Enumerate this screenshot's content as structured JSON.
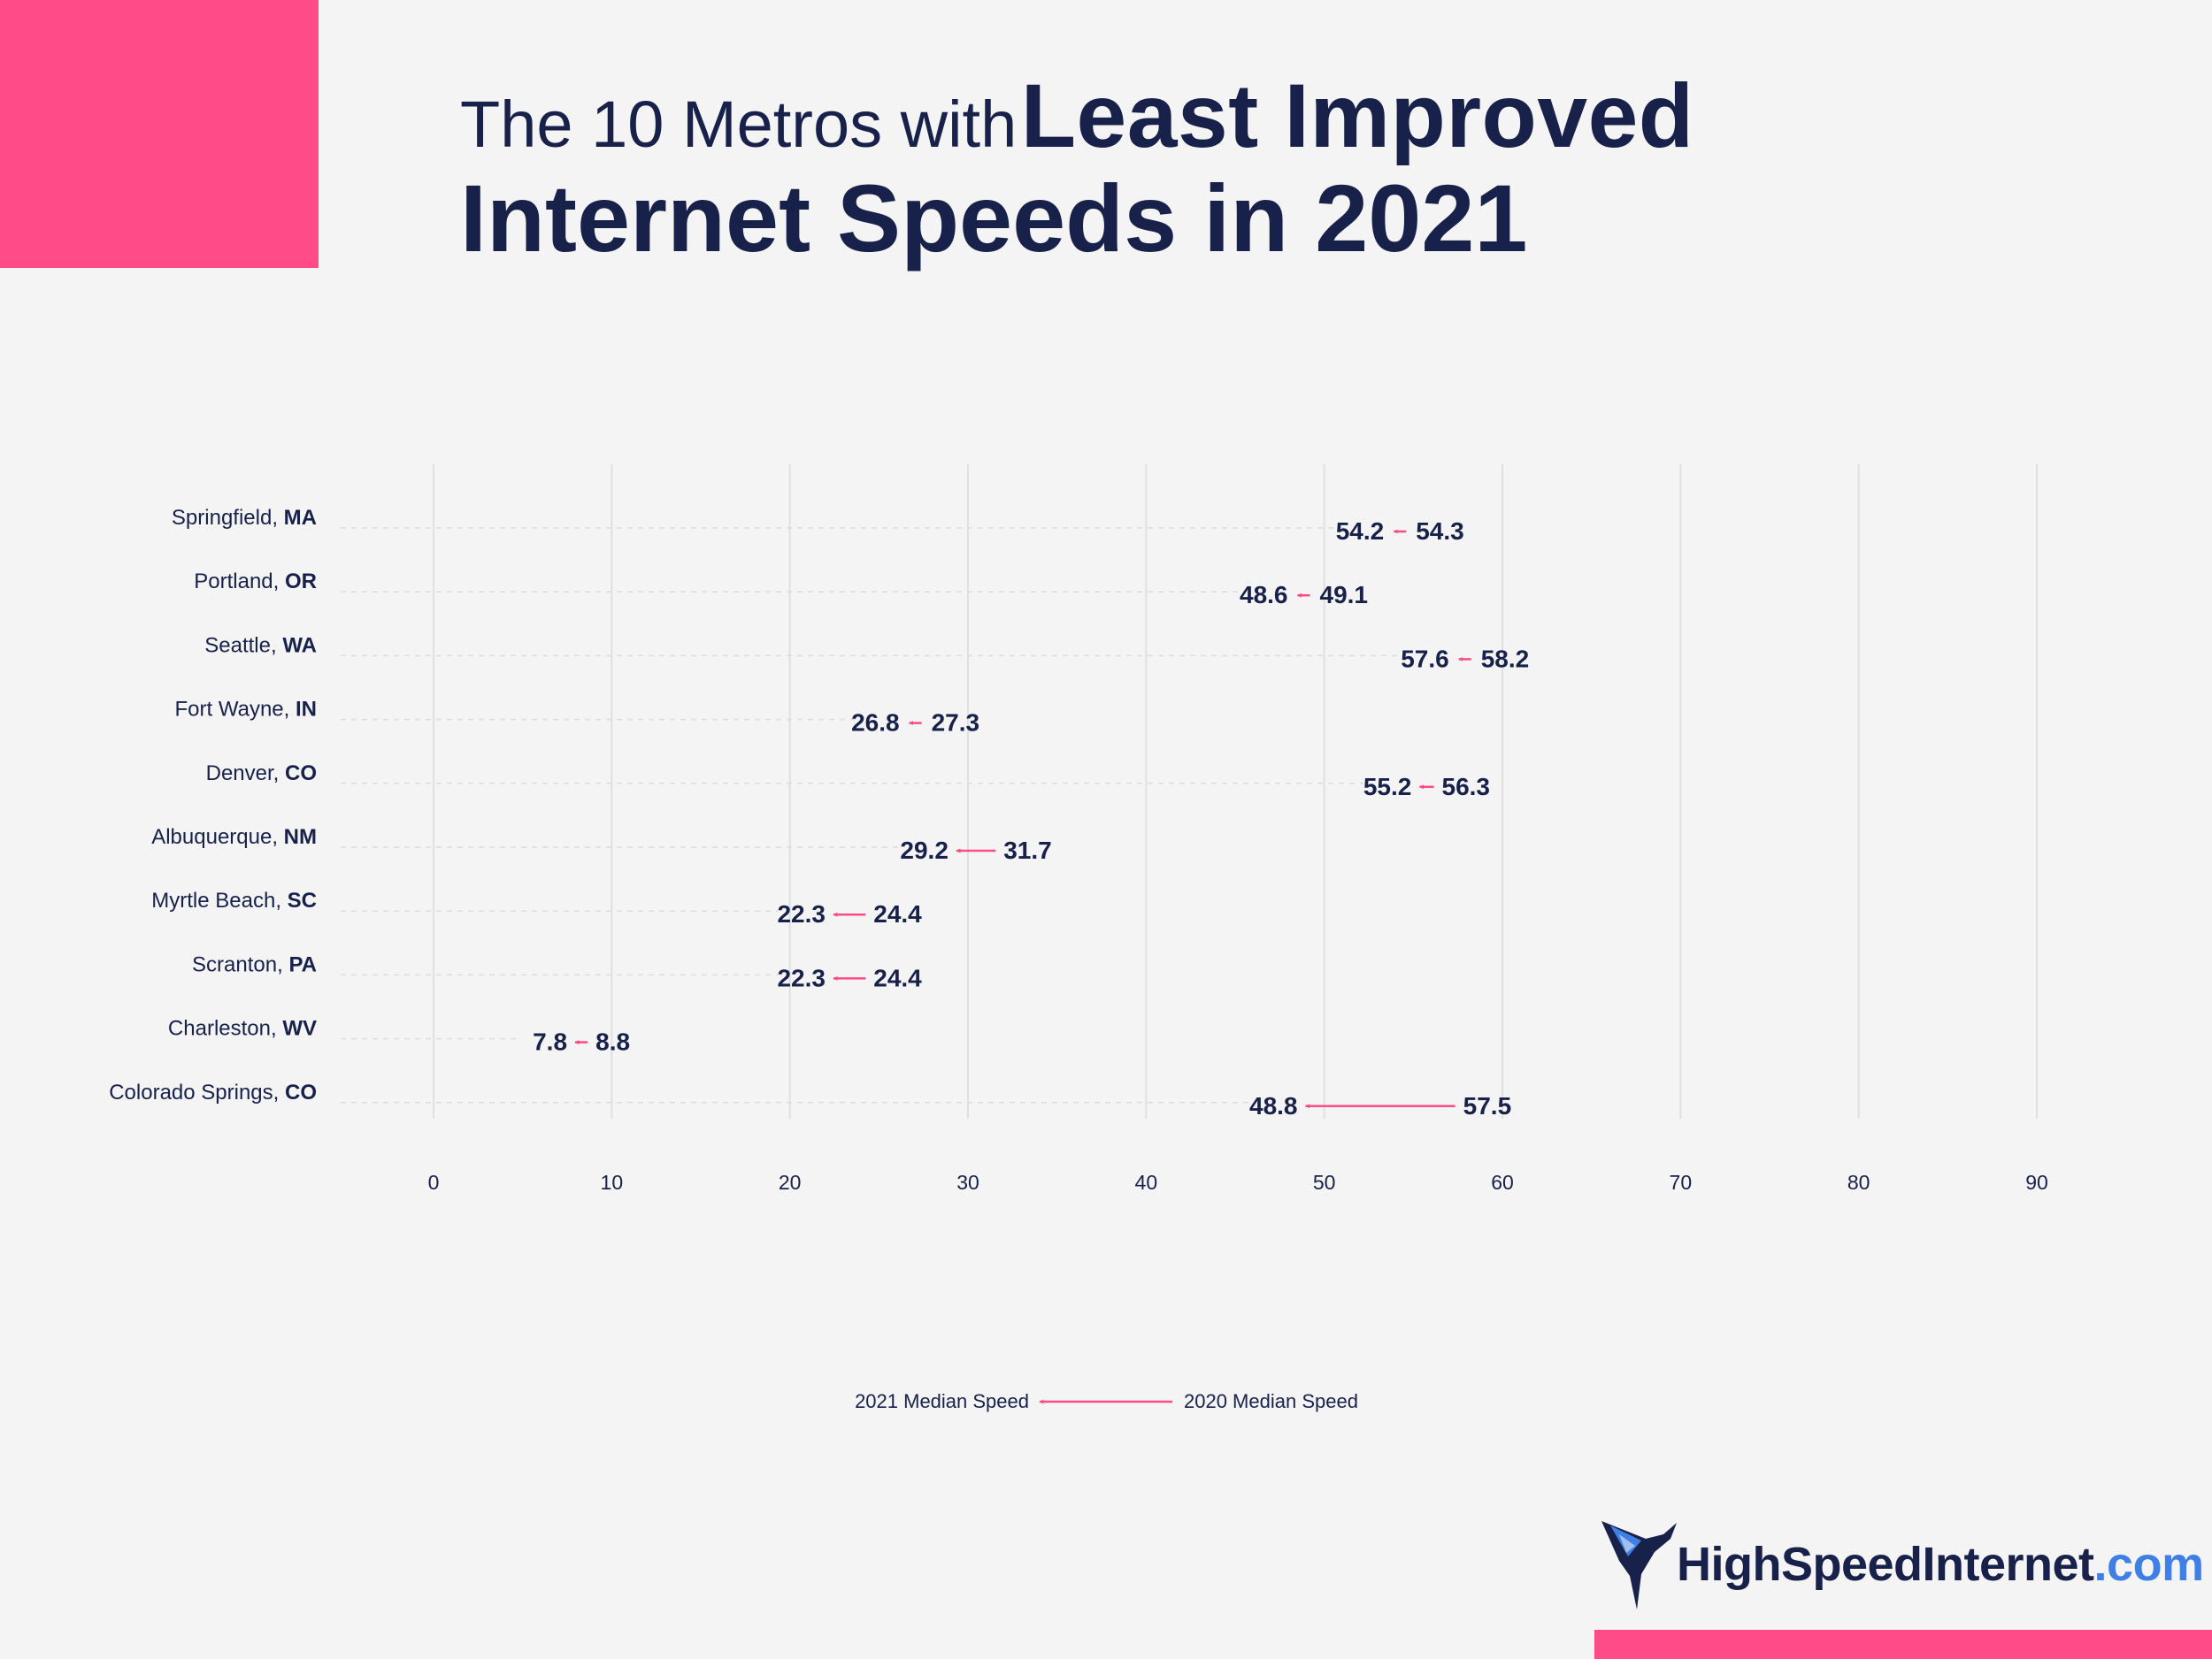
{
  "title": {
    "prefix": "The 10 Metros with",
    "emphasis": "Least Improved",
    "line2": "Internet Speeds in 2021"
  },
  "colors": {
    "accent": "#ff4b87",
    "text": "#17214a",
    "grid": "#e0e0e0",
    "background": "#f4f4f4",
    "logo_blue": "#3f7fe6"
  },
  "chart_data": {
    "type": "dumbbell",
    "x_ticks": [
      "0",
      "10",
      "20",
      "30",
      "40",
      "50",
      "60",
      "70",
      "80",
      "90"
    ],
    "xlim": [
      0,
      90
    ],
    "grid": true,
    "legend": {
      "left_label": "2021 Median Speed",
      "right_label": "2020 Median Speed",
      "placement": "bottom-center"
    },
    "rows": [
      {
        "city": "Springfield, ",
        "state": "MA",
        "v2021": 54.2,
        "v2020": 54.3,
        "l2021": "54.2",
        "l2020": "54.3"
      },
      {
        "city": "Portland, ",
        "state": "OR",
        "v2021": 48.6,
        "v2020": 49.1,
        "l2021": "48.6",
        "l2020": "49.1"
      },
      {
        "city": "Seattle, ",
        "state": "WA",
        "v2021": 57.6,
        "v2020": 58.2,
        "l2021": "57.6",
        "l2020": "58.2"
      },
      {
        "city": "Fort Wayne, ",
        "state": "IN",
        "v2021": 26.8,
        "v2020": 27.3,
        "l2021": "26.8",
        "l2020": "27.3"
      },
      {
        "city": "Denver, ",
        "state": "CO",
        "v2021": 55.2,
        "v2020": 56.3,
        "l2021": "55.2",
        "l2020": "56.3"
      },
      {
        "city": "Albuquerque, ",
        "state": "NM",
        "v2021": 29.2,
        "v2020": 31.7,
        "l2021": "29.2",
        "l2020": "31.7"
      },
      {
        "city": "Myrtle Beach, ",
        "state": "SC",
        "v2021": 22.3,
        "v2020": 24.4,
        "l2021": "22.3",
        "l2020": "24.4"
      },
      {
        "city": "Scranton, ",
        "state": "PA",
        "v2021": 22.3,
        "v2020": 24.4,
        "l2021": "22.3",
        "l2020": "24.4"
      },
      {
        "city": "Charleston, ",
        "state": "WV",
        "v2021": 7.8,
        "v2020": 8.8,
        "l2021": "7.8",
        "l2020": "8.8"
      },
      {
        "city": "Colorado Springs, ",
        "state": "CO",
        "v2021": 48.8,
        "v2020": 57.5,
        "l2021": "48.8",
        "l2020": "57.5"
      }
    ]
  },
  "logo": {
    "name": "HighSpeedInternet",
    "domain": ".com"
  }
}
